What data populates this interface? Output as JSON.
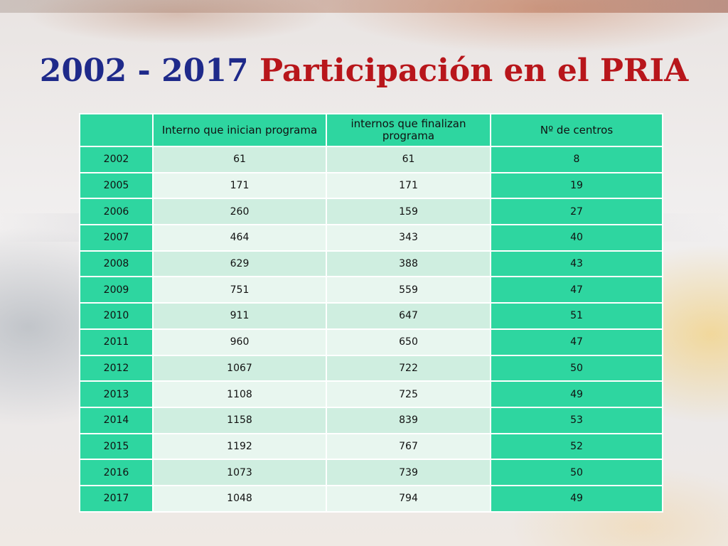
{
  "title": {
    "years": "2002 - 2017",
    "name": "Participación en el PRIA"
  },
  "table": {
    "headers": [
      "",
      "Interno que inician programa",
      "internos que finalizan programa",
      "Nº de centros"
    ],
    "rows": [
      [
        "2002",
        "61",
        "61",
        "8"
      ],
      [
        "2005",
        "171",
        "171",
        "19"
      ],
      [
        "2006",
        "260",
        "159",
        "27"
      ],
      [
        "2007",
        "464",
        "343",
        "40"
      ],
      [
        "2008",
        "629",
        "388",
        "43"
      ],
      [
        "2009",
        "751",
        "559",
        "47"
      ],
      [
        "2010",
        "911",
        "647",
        "51"
      ],
      [
        "2011",
        "960",
        "650",
        "47"
      ],
      [
        "2012",
        "1067",
        "722",
        "50"
      ],
      [
        "2013",
        "1108",
        "725",
        "49"
      ],
      [
        "2014",
        "1158",
        "839",
        "53"
      ],
      [
        "2015",
        "1192",
        "767",
        "52"
      ],
      [
        "2016",
        "1073",
        "739",
        "50"
      ],
      [
        "2017",
        "1048",
        "794",
        "49"
      ]
    ]
  },
  "colors": {
    "title_years": "#1f2a8a",
    "title_name": "#b8161b",
    "accent_green": "#2ed6a0",
    "band_dark": "#cfeee0",
    "band_light": "#e8f6ef"
  }
}
